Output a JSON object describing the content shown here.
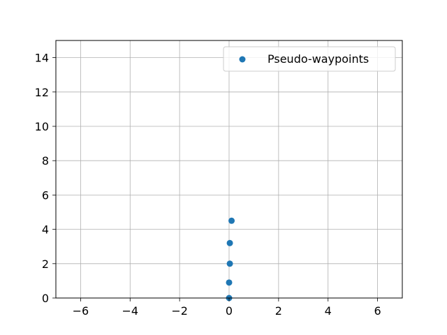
{
  "chart_data": {
    "type": "scatter",
    "title": "",
    "xlabel": "",
    "ylabel": "",
    "xlim": [
      -7,
      7
    ],
    "ylim": [
      0,
      15
    ],
    "x_ticks": [
      -6,
      -4,
      -2,
      0,
      2,
      4,
      6
    ],
    "x_tick_labels": [
      "−6",
      "−4",
      "−2",
      "0",
      "2",
      "4",
      "6"
    ],
    "y_ticks": [
      0,
      2,
      4,
      6,
      8,
      10,
      12,
      14
    ],
    "y_tick_labels": [
      "0",
      "2",
      "4",
      "6",
      "8",
      "10",
      "12",
      "14"
    ],
    "grid": true,
    "legend_position": "top-right",
    "series": [
      {
        "name": "Pseudo-waypoints",
        "color": "#1f77b4",
        "points": [
          {
            "x": 0.0,
            "y": 0.0
          },
          {
            "x": 0.0,
            "y": 0.9
          },
          {
            "x": 0.03,
            "y": 2.0
          },
          {
            "x": 0.03,
            "y": 3.2
          },
          {
            "x": 0.1,
            "y": 4.5
          }
        ]
      }
    ]
  }
}
